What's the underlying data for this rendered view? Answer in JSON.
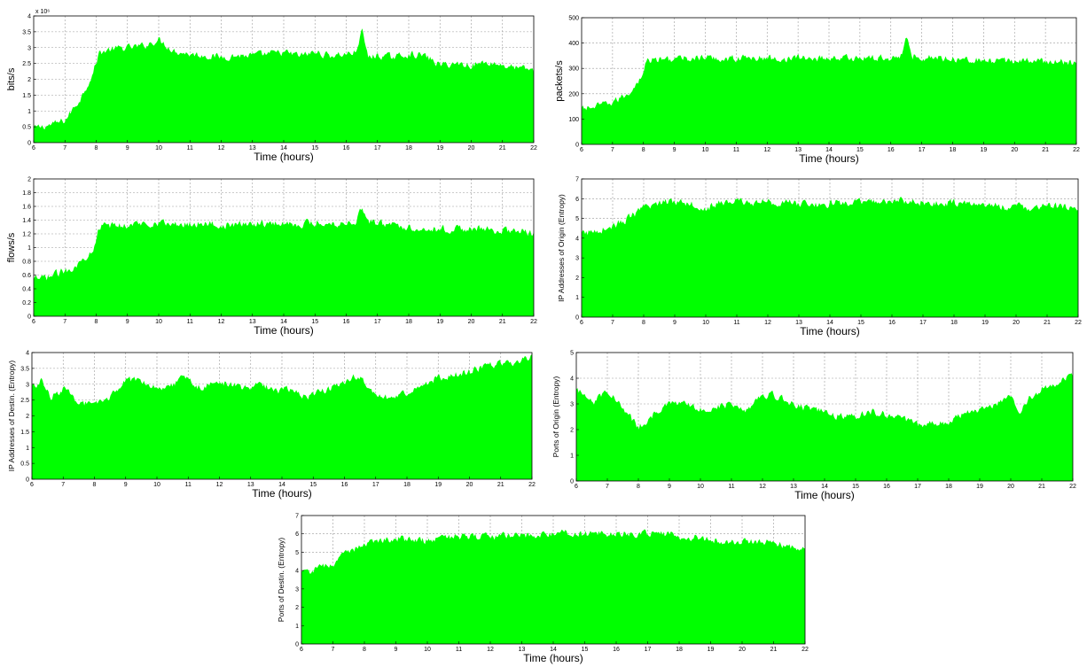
{
  "chart_data": [
    {
      "type": "area",
      "xlabel": "Time (hours)",
      "ylabel": "bits/s",
      "y_exponent_label": "x 10⁶",
      "xlim": [
        6,
        22
      ],
      "ylim": [
        0,
        4
      ],
      "xticks": [
        6,
        7,
        8,
        9,
        10,
        11,
        12,
        13,
        14,
        15,
        16,
        17,
        18,
        19,
        20,
        21,
        22
      ],
      "yticks": [
        0,
        0.5,
        1,
        1.5,
        2,
        2.5,
        3,
        3.5,
        4
      ],
      "grid": true,
      "color": "#00ff00",
      "series": [
        {
          "x": [
            6,
            6.5,
            7,
            7.5,
            7.9,
            8.1,
            8.5,
            9,
            9.5,
            10,
            10.5,
            11,
            11.5,
            12,
            12.5,
            13,
            13.5,
            14,
            14.5,
            15,
            15.5,
            16,
            16.3,
            16.5,
            16.7,
            17,
            17.5,
            18,
            18.5,
            19,
            19.5,
            20,
            20.5,
            21,
            21.5,
            22
          ],
          "values": [
            0.45,
            0.55,
            0.7,
            1.4,
            2.2,
            2.85,
            2.95,
            3.0,
            3.05,
            3.25,
            2.9,
            2.8,
            2.75,
            2.7,
            2.75,
            2.75,
            2.8,
            2.85,
            2.75,
            2.85,
            2.75,
            2.8,
            2.85,
            3.55,
            2.7,
            2.75,
            2.7,
            2.8,
            2.75,
            2.45,
            2.5,
            2.45,
            2.55,
            2.45,
            2.35,
            2.3
          ]
        }
      ]
    },
    {
      "type": "area",
      "xlabel": "Time (hours)",
      "ylabel": "packets/s",
      "xlim": [
        6,
        22
      ],
      "ylim": [
        0,
        500
      ],
      "xticks": [
        6,
        7,
        8,
        9,
        10,
        11,
        12,
        13,
        14,
        15,
        16,
        17,
        18,
        19,
        20,
        21,
        22
      ],
      "yticks": [
        0,
        100,
        200,
        300,
        400,
        500
      ],
      "grid": true,
      "color": "#00ff00",
      "series": [
        {
          "x": [
            6,
            6.5,
            7,
            7.5,
            7.9,
            8.1,
            8.5,
            9,
            9.5,
            10,
            10.5,
            11,
            11.5,
            12,
            12.5,
            13,
            13.5,
            14,
            14.5,
            15,
            15.5,
            16,
            16.3,
            16.5,
            16.7,
            17,
            17.5,
            18,
            18.5,
            19,
            19.5,
            20,
            20.5,
            21,
            21.5,
            22
          ],
          "values": [
            140,
            150,
            165,
            200,
            260,
            330,
            335,
            338,
            340,
            342,
            338,
            340,
            342,
            340,
            338,
            342,
            340,
            343,
            340,
            342,
            340,
            343,
            345,
            415,
            350,
            345,
            342,
            340,
            338,
            330,
            325,
            332,
            330,
            328,
            325,
            322
          ]
        }
      ]
    },
    {
      "type": "area",
      "xlabel": "Time (hours)",
      "ylabel": "flows/s",
      "xlim": [
        6,
        22
      ],
      "ylim": [
        0,
        2
      ],
      "xticks": [
        6,
        7,
        8,
        9,
        10,
        11,
        12,
        13,
        14,
        15,
        16,
        17,
        18,
        19,
        20,
        21,
        22
      ],
      "yticks": [
        0,
        0.2,
        0.4,
        0.6,
        0.8,
        1,
        1.2,
        1.4,
        1.6,
        1.8,
        2
      ],
      "grid": true,
      "color": "#00ff00",
      "series": [
        {
          "x": [
            6,
            6.5,
            7,
            7.5,
            7.9,
            8.1,
            8.5,
            9,
            9.5,
            10,
            10.5,
            11,
            11.5,
            12,
            12.5,
            13,
            13.5,
            14,
            14.5,
            15,
            15.5,
            16,
            16.3,
            16.5,
            16.7,
            17,
            17.5,
            18,
            18.5,
            19,
            19.5,
            20,
            20.5,
            21,
            21.5,
            22
          ],
          "values": [
            0.52,
            0.58,
            0.66,
            0.78,
            1.0,
            1.3,
            1.32,
            1.33,
            1.35,
            1.37,
            1.33,
            1.35,
            1.36,
            1.32,
            1.33,
            1.36,
            1.35,
            1.36,
            1.34,
            1.37,
            1.35,
            1.36,
            1.38,
            1.6,
            1.38,
            1.36,
            1.33,
            1.3,
            1.28,
            1.27,
            1.27,
            1.28,
            1.26,
            1.25,
            1.24,
            1.2
          ]
        }
      ]
    },
    {
      "type": "area",
      "xlabel": "Time (hours)",
      "ylabel": "IP Addresses of Origin (Entropy)",
      "xlim": [
        6,
        22
      ],
      "ylim": [
        0,
        7
      ],
      "xticks": [
        6,
        7,
        8,
        9,
        10,
        11,
        12,
        13,
        14,
        15,
        16,
        17,
        18,
        19,
        20,
        21,
        22
      ],
      "yticks": [
        0,
        1,
        2,
        3,
        4,
        5,
        6,
        7
      ],
      "grid": true,
      "color": "#00ff00",
      "series": [
        {
          "x": [
            6,
            6.5,
            7,
            7.5,
            8,
            8.5,
            9,
            9.5,
            10,
            10.5,
            11,
            11.5,
            12,
            12.5,
            13,
            13.5,
            14,
            14.5,
            15,
            15.5,
            16,
            16.5,
            17,
            17.5,
            18,
            18.5,
            19,
            19.5,
            20,
            20.5,
            21,
            21.5,
            22
          ],
          "values": [
            4.2,
            4.4,
            4.6,
            5.0,
            5.5,
            5.8,
            5.9,
            5.8,
            5.5,
            5.8,
            5.85,
            5.8,
            5.85,
            5.8,
            5.75,
            5.7,
            5.75,
            5.8,
            5.8,
            5.85,
            5.9,
            5.85,
            5.8,
            5.75,
            5.8,
            5.7,
            5.75,
            5.6,
            5.6,
            5.55,
            5.6,
            5.6,
            5.55
          ]
        }
      ]
    },
    {
      "type": "area",
      "xlabel": "Time (hours)",
      "ylabel": "IP Addresses of Destin. (Entropy)",
      "xlim": [
        6,
        22
      ],
      "ylim": [
        0,
        4
      ],
      "xticks": [
        6,
        7,
        8,
        9,
        10,
        11,
        12,
        13,
        14,
        15,
        16,
        17,
        18,
        19,
        20,
        21,
        22
      ],
      "yticks": [
        0,
        0.5,
        1,
        1.5,
        2,
        2.5,
        3,
        3.5,
        4
      ],
      "grid": true,
      "color": "#00ff00",
      "series": [
        {
          "x": [
            6,
            6.3,
            6.6,
            7,
            7.5,
            8,
            8.5,
            9,
            9.5,
            10,
            10.5,
            10.9,
            11.3,
            11.8,
            12.3,
            12.8,
            13.3,
            13.8,
            14.3,
            14.8,
            15.3,
            15.8,
            16.3,
            16.6,
            17,
            17.5,
            18,
            18.5,
            19,
            19.5,
            20,
            20.5,
            21,
            21.5,
            22
          ],
          "values": [
            2.9,
            3.1,
            2.6,
            2.85,
            2.45,
            2.3,
            2.6,
            3.1,
            3.15,
            2.9,
            3.0,
            3.25,
            2.9,
            3.0,
            3.05,
            2.85,
            3.0,
            2.8,
            2.85,
            2.6,
            2.8,
            2.95,
            3.25,
            3.1,
            2.6,
            2.55,
            2.75,
            3.0,
            3.2,
            3.3,
            3.4,
            3.55,
            3.65,
            3.7,
            3.85
          ]
        }
      ]
    },
    {
      "type": "area",
      "xlabel": "Time (hours)",
      "ylabel": "Ports of Origin (Entropy)",
      "xlim": [
        6,
        22
      ],
      "ylim": [
        0,
        5
      ],
      "xticks": [
        6,
        7,
        8,
        9,
        10,
        11,
        12,
        13,
        14,
        15,
        16,
        17,
        18,
        19,
        20,
        21,
        22
      ],
      "yticks": [
        0,
        1,
        2,
        3,
        4,
        5
      ],
      "grid": true,
      "color": "#00ff00",
      "series": [
        {
          "x": [
            6,
            6.3,
            6.6,
            7,
            7.5,
            8,
            8.5,
            9,
            9.5,
            10,
            10.5,
            11,
            11.5,
            12,
            12.5,
            13,
            13.5,
            14,
            14.5,
            15,
            15.5,
            16,
            16.5,
            17,
            17.5,
            18,
            18.5,
            19,
            19.5,
            20,
            20.3,
            20.6,
            21,
            21.5,
            22
          ],
          "values": [
            3.5,
            3.4,
            3.1,
            3.6,
            2.8,
            2.1,
            2.6,
            3.0,
            3.0,
            2.8,
            2.9,
            3.0,
            2.8,
            3.4,
            3.3,
            3.0,
            2.8,
            2.7,
            2.5,
            2.55,
            2.7,
            2.6,
            2.4,
            2.2,
            2.25,
            2.3,
            2.6,
            2.8,
            3.0,
            3.4,
            2.6,
            3.2,
            3.6,
            3.8,
            4.1
          ]
        }
      ]
    },
    {
      "type": "area",
      "xlabel": "Time (hours)",
      "ylabel": "Ports of Destin. (Entropy)",
      "xlim": [
        6,
        22
      ],
      "ylim": [
        0,
        7
      ],
      "xticks": [
        6,
        7,
        8,
        9,
        10,
        11,
        12,
        13,
        14,
        15,
        16,
        17,
        18,
        19,
        20,
        21,
        22
      ],
      "yticks": [
        0,
        1,
        2,
        3,
        4,
        5,
        6,
        7
      ],
      "grid": true,
      "color": "#00ff00",
      "series": [
        {
          "x": [
            6,
            6.5,
            7,
            7.5,
            8,
            8.5,
            9,
            9.5,
            10,
            10.5,
            11,
            11.5,
            12,
            12.5,
            13,
            13.5,
            14,
            14.5,
            15,
            15.5,
            16,
            16.5,
            17,
            17.5,
            18,
            18.5,
            19,
            19.5,
            20,
            20.5,
            21,
            21.5,
            22
          ],
          "values": [
            3.8,
            4.1,
            4.4,
            5.0,
            5.5,
            5.7,
            5.75,
            5.7,
            5.6,
            5.8,
            5.9,
            5.8,
            5.85,
            5.9,
            5.9,
            5.95,
            6.0,
            6.05,
            6.0,
            6.05,
            6.0,
            6.0,
            6.05,
            6.0,
            5.9,
            5.8,
            5.7,
            5.6,
            5.55,
            5.6,
            5.5,
            5.3,
            5.1
          ]
        }
      ]
    }
  ]
}
